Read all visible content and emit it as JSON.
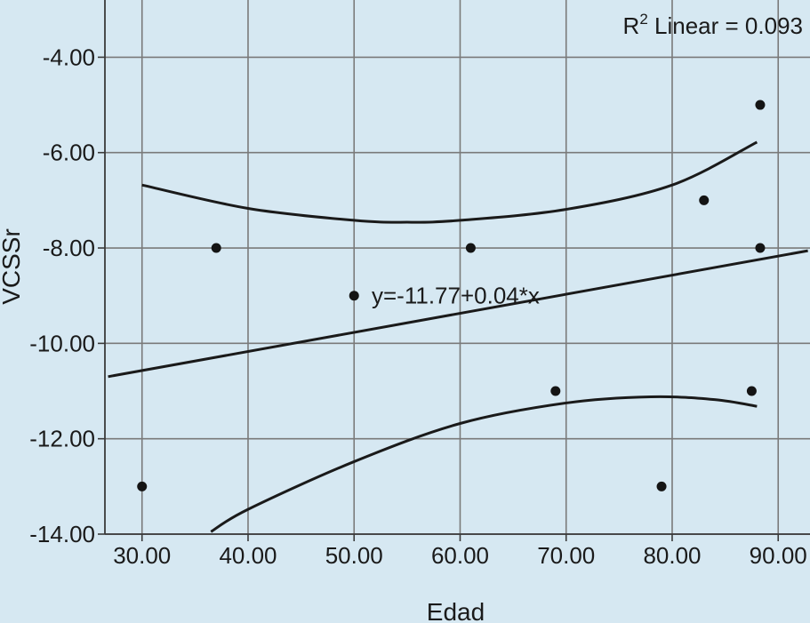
{
  "chart_data": {
    "type": "scatter",
    "title": "",
    "xlabel": "Edad",
    "ylabel": "VCSSr",
    "xlim": [
      26.5,
      93
    ],
    "ylim": [
      -14,
      -2.8
    ],
    "xticks": [
      30,
      40,
      50,
      60,
      70,
      80,
      90
    ],
    "yticks": [
      -14,
      -12,
      -10,
      -8,
      -6,
      -4
    ],
    "xtick_labels": [
      "30.00",
      "40.00",
      "50.00",
      "60.00",
      "70.00",
      "80.00",
      "90.00"
    ],
    "ytick_labels": [
      "-14.00",
      "-12.00",
      "-10.00",
      "-8.00",
      "-6.00",
      "-4.00"
    ],
    "grid": true,
    "points": [
      {
        "x": 30.0,
        "y": -13.0
      },
      {
        "x": 37.0,
        "y": -8.0
      },
      {
        "x": 50.0,
        "y": -9.0
      },
      {
        "x": 61.0,
        "y": -8.0
      },
      {
        "x": 69.0,
        "y": -11.0
      },
      {
        "x": 79.0,
        "y": -13.0
      },
      {
        "x": 83.0,
        "y": -7.0
      },
      {
        "x": 87.5,
        "y": -11.0
      },
      {
        "x": 88.3,
        "y": -5.0
      },
      {
        "x": 88.3,
        "y": -8.0
      }
    ],
    "fit_line": {
      "intercept": -11.77,
      "slope": 0.04,
      "label": "y=-11.77+0.04*x"
    },
    "confidence_upper": [
      {
        "x": 30,
        "y": -6.68
      },
      {
        "x": 40,
        "y": -7.17
      },
      {
        "x": 50,
        "y": -7.42
      },
      {
        "x": 55,
        "y": -7.46
      },
      {
        "x": 60,
        "y": -7.42
      },
      {
        "x": 70,
        "y": -7.19
      },
      {
        "x": 80,
        "y": -6.68
      },
      {
        "x": 88,
        "y": -5.78
      }
    ],
    "confidence_lower": [
      {
        "x": 36.5,
        "y": -13.95
      },
      {
        "x": 40,
        "y": -13.48
      },
      {
        "x": 50,
        "y": -12.48
      },
      {
        "x": 60,
        "y": -11.68
      },
      {
        "x": 70,
        "y": -11.25
      },
      {
        "x": 78,
        "y": -11.12
      },
      {
        "x": 84,
        "y": -11.18
      },
      {
        "x": 88,
        "y": -11.32
      }
    ],
    "annotations": [
      {
        "text": "R",
        "superscript": "2",
        "rest": " Linear = 0.093",
        "position": "top-right"
      }
    ]
  }
}
